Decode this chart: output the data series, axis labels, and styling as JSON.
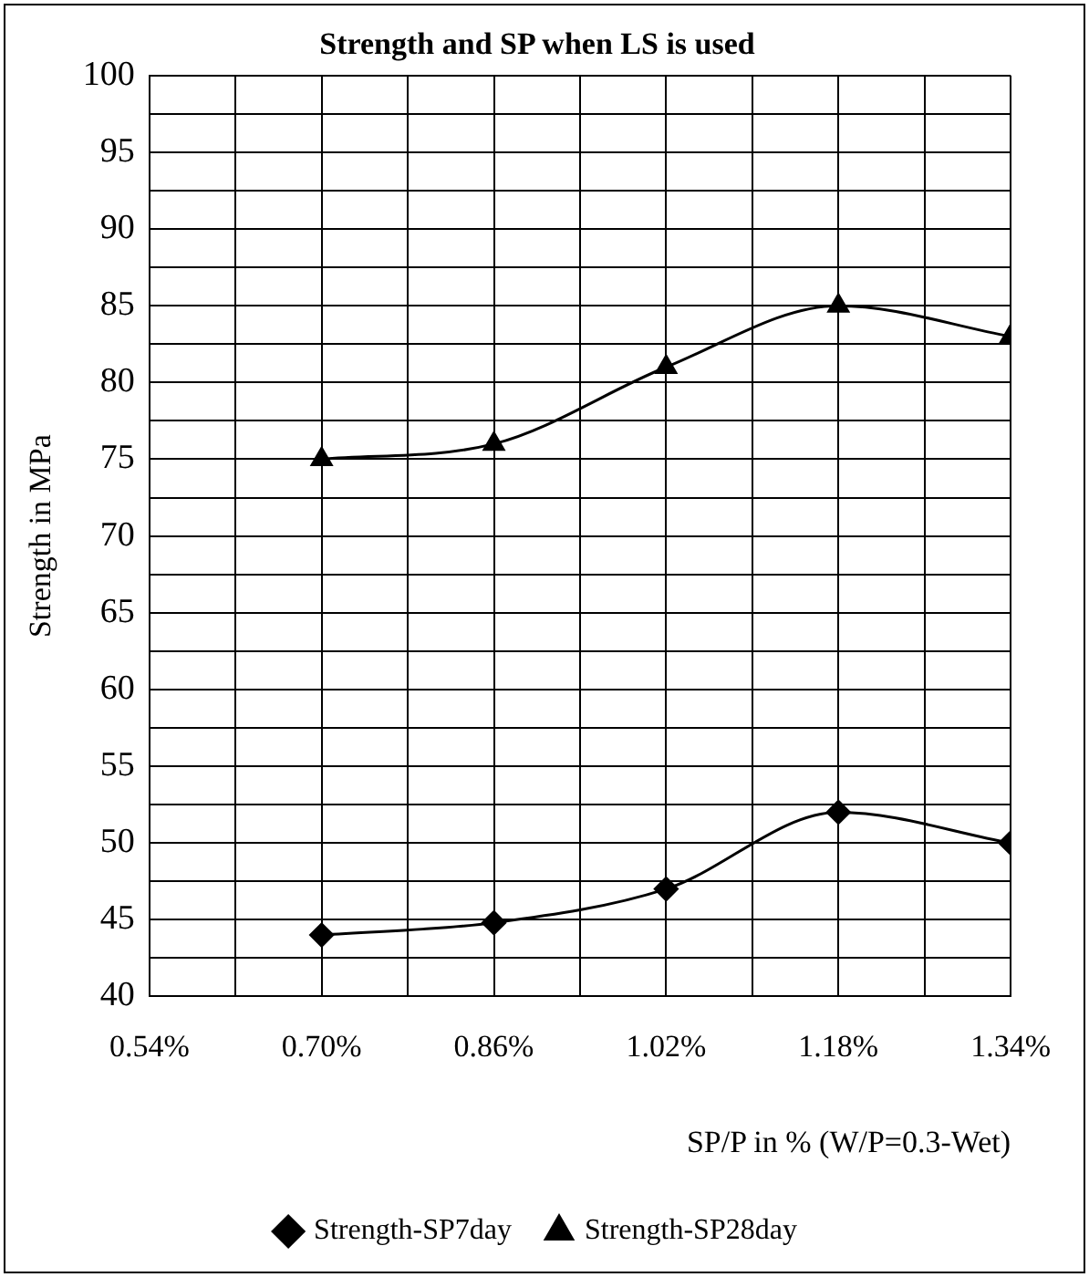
{
  "chart_data": {
    "type": "line",
    "title": "Strength and SP when LS is used",
    "xlabel": "SP/P in % (W/P=0.3-Wet)",
    "ylabel": "Strength in MPa",
    "x": [
      0.7,
      0.86,
      1.02,
      1.18,
      1.34
    ],
    "series": [
      {
        "name": "Strength-SP7day",
        "color": "#000000",
        "marker": "diamond",
        "values": [
          44,
          44.8,
          47,
          52,
          50
        ]
      },
      {
        "name": "Strength-SP28day",
        "color": "#000000",
        "marker": "triangle",
        "values": [
          75,
          76,
          81,
          85,
          83
        ]
      }
    ],
    "xlim": [
      0.54,
      1.34
    ],
    "xticks": [
      {
        "value": 0.54,
        "label": "0.54%"
      },
      {
        "value": 0.62,
        "label": null
      },
      {
        "value": 0.7,
        "label": "0.70%"
      },
      {
        "value": 0.78,
        "label": null
      },
      {
        "value": 0.86,
        "label": "0.86%"
      },
      {
        "value": 0.94,
        "label": null
      },
      {
        "value": 1.02,
        "label": "1.02%"
      },
      {
        "value": 1.1,
        "label": null
      },
      {
        "value": 1.18,
        "label": "1.18%"
      },
      {
        "value": 1.26,
        "label": null
      },
      {
        "value": 1.34,
        "label": "1.34%"
      }
    ],
    "ylim": [
      40,
      100
    ],
    "yticks": [
      40,
      {
        "value": 42.5,
        "label": null
      },
      45,
      {
        "value": 47.5,
        "label": null
      },
      50,
      {
        "value": 52.5,
        "label": null
      },
      55,
      {
        "value": 57.5,
        "label": null
      },
      60,
      {
        "value": 62.5,
        "label": null
      },
      65,
      {
        "value": 67.5,
        "label": null
      },
      70,
      {
        "value": 72.5,
        "label": null
      },
      75,
      {
        "value": 77.5,
        "label": null
      },
      80,
      {
        "value": 82.5,
        "label": null
      },
      85,
      {
        "value": 87.5,
        "label": null
      },
      90,
      {
        "value": 92.5,
        "label": null
      },
      95,
      {
        "value": 97.5,
        "label": null
      },
      100
    ],
    "grid": true,
    "legend": "bottom",
    "line_style": "solid"
  }
}
